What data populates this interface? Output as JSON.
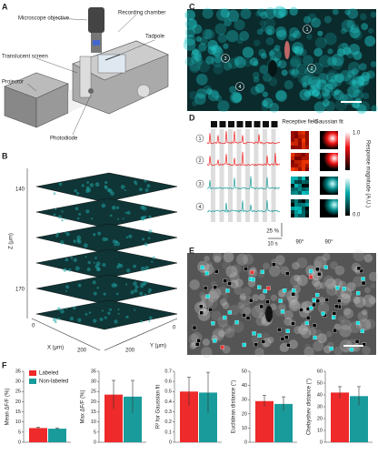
{
  "panel_labels": [
    "A",
    "B",
    "C",
    "D",
    "E",
    "F"
  ],
  "panel_a": {
    "labels": [
      "Microscope objective",
      "Recording chamber",
      "Translucent screen",
      "Tadpole",
      "Projector",
      "Photodiode"
    ]
  },
  "panel_b": {
    "z_label": "Z (μm)",
    "z_ticks": [
      "140",
      "170"
    ],
    "x_label": "X (μm)",
    "x_ticks": [
      "0",
      "200"
    ],
    "y_label": "Y (μm)",
    "y_ticks": [
      "200",
      "0"
    ]
  },
  "panel_c": {
    "cell_labels": [
      "1",
      "2",
      "3",
      "4"
    ]
  },
  "panel_d": {
    "cell_labels": [
      "1",
      "2",
      "3",
      "4"
    ],
    "rf_title": "Receptive field",
    "fit_title": "Gaussian fit",
    "colorbar_max": "1.0",
    "colorbar_min": "0.0",
    "colorbar_label": "Response magnitude (A.U.)",
    "dff_scale": "25 %",
    "time_scale": "10 s",
    "rf_scale": "90°",
    "fit_scale": "90°"
  },
  "chart_data": [
    {
      "type": "bar",
      "ylabel": "Mean ΔF/F (%)",
      "ylim": [
        0,
        35
      ],
      "yticks": [
        0,
        5,
        10,
        15,
        20,
        25,
        30,
        35
      ],
      "legend": "top-right",
      "series": [
        {
          "name": "Labeled",
          "color": "#ee2a2a",
          "values": [
            7.0
          ],
          "errors": [
            0.4
          ]
        },
        {
          "name": "Non-labeled",
          "color": "#1a9b9b",
          "values": [
            6.7
          ],
          "errors": [
            0.4
          ]
        }
      ]
    },
    {
      "type": "bar",
      "ylabel": "Max ΔF/F (%)",
      "ylim": [
        0,
        35
      ],
      "yticks": [
        0,
        5,
        10,
        15,
        20,
        25,
        30,
        35
      ],
      "series": [
        {
          "color": "#ee2a2a",
          "values": [
            23.5
          ],
          "errors": [
            7
          ]
        },
        {
          "color": "#1a9b9b",
          "values": [
            22.5
          ],
          "errors": [
            8
          ]
        }
      ]
    },
    {
      "type": "bar",
      "ylabel": "R² for Gaussian fit",
      "ylim": [
        0,
        0.7
      ],
      "yticks": [
        0,
        0.1,
        0.2,
        0.3,
        0.4,
        0.5,
        0.6,
        0.7
      ],
      "series": [
        {
          "color": "#ee2a2a",
          "values": [
            0.5
          ],
          "errors": [
            0.14
          ]
        },
        {
          "color": "#1a9b9b",
          "values": [
            0.49
          ],
          "errors": [
            0.2
          ]
        }
      ]
    },
    {
      "type": "bar",
      "ylabel": "Euclidean distance (°)",
      "ylim": [
        0,
        50
      ],
      "yticks": [
        0,
        10,
        20,
        30,
        40,
        50
      ],
      "series": [
        {
          "color": "#ee2a2a",
          "values": [
            29
          ],
          "errors": [
            4
          ]
        },
        {
          "color": "#1a9b9b",
          "values": [
            27
          ],
          "errors": [
            5
          ]
        }
      ]
    },
    {
      "type": "bar",
      "ylabel": "Chebyshev distance (°)",
      "ylim": [
        0,
        60
      ],
      "yticks": [
        0,
        10,
        20,
        30,
        40,
        50,
        60
      ],
      "series": [
        {
          "color": "#ee2a2a",
          "values": [
            42
          ],
          "errors": [
            5
          ]
        },
        {
          "color": "#1a9b9b",
          "values": [
            39
          ],
          "errors": [
            8
          ]
        }
      ]
    }
  ]
}
